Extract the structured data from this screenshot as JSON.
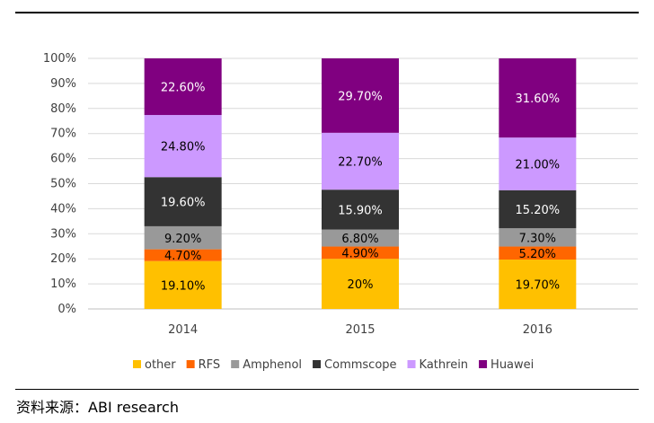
{
  "chart_data": {
    "type": "bar",
    "stacked": true,
    "categories": [
      "2014",
      "2015",
      "2016"
    ],
    "series": [
      {
        "name": "other",
        "color": "#FFC000",
        "values": [
          19.1,
          20,
          19.7
        ],
        "labels": [
          "19.10%",
          "20%",
          "19.70%"
        ],
        "label_color": "#000000"
      },
      {
        "name": "RFS",
        "color": "#FF6600",
        "values": [
          4.7,
          4.9,
          5.2
        ],
        "labels": [
          "4.70%",
          "4.90%",
          "5.20%"
        ],
        "label_color": "#000000"
      },
      {
        "name": "Amphenol",
        "color": "#999999",
        "values": [
          9.2,
          6.8,
          7.3
        ],
        "labels": [
          "9.20%",
          "6.80%",
          "7.30%"
        ],
        "label_color": "#000000"
      },
      {
        "name": "Commscope",
        "color": "#333333",
        "values": [
          19.6,
          15.9,
          15.2
        ],
        "labels": [
          "19.60%",
          "15.90%",
          "15.20%"
        ],
        "label_color": "#ffffff"
      },
      {
        "name": "Kathrein",
        "color": "#CC99FF",
        "values": [
          24.8,
          22.7,
          21.0
        ],
        "labels": [
          "24.80%",
          "22.70%",
          "21.00%"
        ],
        "label_color": "#000000"
      },
      {
        "name": "Huawei",
        "color": "#800080",
        "values": [
          22.6,
          29.7,
          31.6
        ],
        "labels": [
          "22.60%",
          "29.70%",
          "31.60%"
        ],
        "label_color": "#ffffff"
      }
    ],
    "yticks": [
      "0%",
      "10%",
      "20%",
      "30%",
      "40%",
      "50%",
      "60%",
      "70%",
      "80%",
      "90%",
      "100%"
    ],
    "ylim": [
      0,
      100
    ],
    "grid": true,
    "legend_position": "bottom"
  },
  "source": {
    "label": "资料来源：",
    "text": "ABI research"
  }
}
